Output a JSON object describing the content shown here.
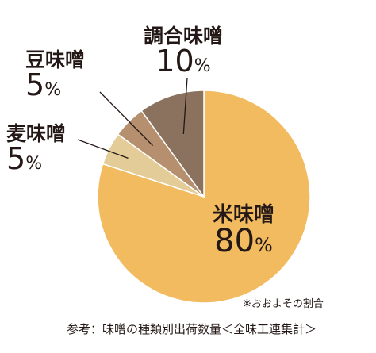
{
  "chart_data": {
    "type": "pie",
    "slices": [
      {
        "label": "米味噌",
        "value": 80,
        "value_text": "80",
        "unit": "%",
        "color": "#f2bb60"
      },
      {
        "label": "麦味噌",
        "value": 5,
        "value_text": "5",
        "unit": "%",
        "color": "#e4cc98"
      },
      {
        "label": "豆味噌",
        "value": 5,
        "value_text": "5",
        "unit": "%",
        "color": "#b6906e"
      },
      {
        "label": "調合味噌",
        "value": 10,
        "value_text": "10",
        "unit": "%",
        "color": "#8b725f"
      }
    ],
    "start_angle_deg": 0,
    "direction": "clockwise",
    "leader_color": "#231815",
    "note": "※おおよその割合",
    "source": "参考：味噌の種類別出荷数量＜全味工連集計＞"
  }
}
